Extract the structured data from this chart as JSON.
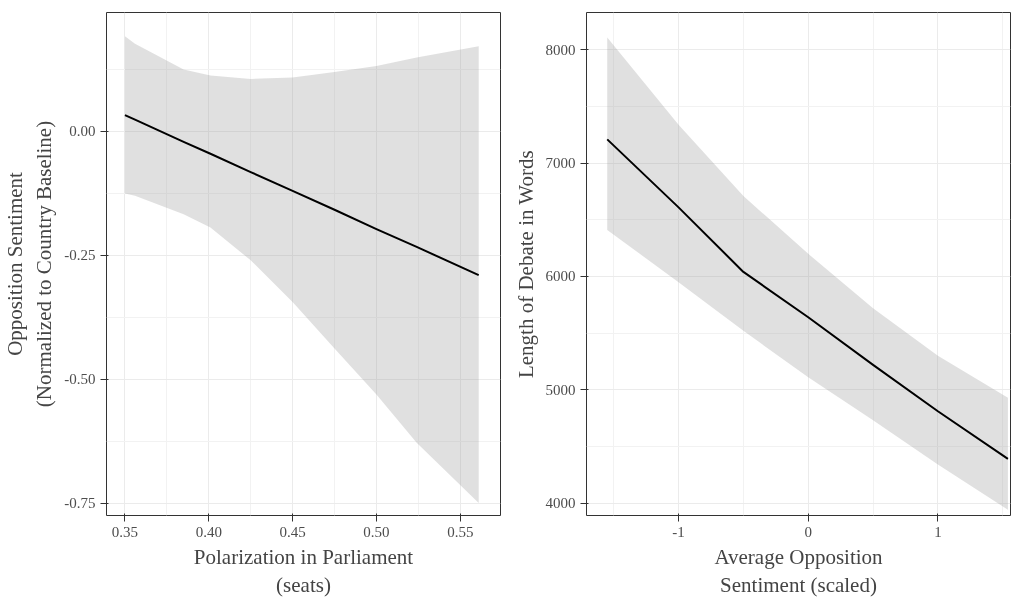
{
  "chart_data": [
    {
      "type": "line",
      "xlabel": "Polarization in Parliament\n(seats)",
      "ylabel": "Opposition Sentiment\n(Normalized to Country Baseline)",
      "xlim": [
        0.339,
        0.574
      ],
      "ylim": [
        -0.775,
        0.24
      ],
      "xticks": [
        0.35,
        {
          "value": 0.4,
          "label": "0.40"
        },
        0.45,
        {
          "value": 0.5,
          "label": "0.50"
        },
        0.55
      ],
      "yticks": [
        {
          "value": 0,
          "label": "0.00"
        },
        -0.25,
        {
          "value": -0.5,
          "label": "-0.50"
        },
        -0.75
      ],
      "grid": true,
      "series": [
        {
          "color": "#000000",
          "x": [
            0.35,
            0.356,
            0.385,
            0.401,
            0.425,
            0.45,
            0.475,
            0.5,
            0.524,
            0.561
          ],
          "values": [
            0.033,
            0.024,
            -0.021,
            -0.045,
            -0.082,
            -0.12,
            -0.158,
            -0.197,
            -0.233,
            -0.29
          ],
          "upper": [
            0.192,
            0.177,
            0.125,
            0.113,
            0.106,
            0.109,
            0.12,
            0.132,
            0.149,
            0.172
          ],
          "lower": [
            -0.125,
            -0.13,
            -0.167,
            -0.194,
            -0.26,
            -0.344,
            -0.438,
            -0.531,
            -0.628,
            -0.75
          ]
        }
      ]
    },
    {
      "type": "line",
      "xlabel": "Average Opposition\nSentiment (scaled)",
      "ylabel": "Length of Debate in Words",
      "xlim": [
        -1.71,
        1.56
      ],
      "ylim": [
        3890,
        8330
      ],
      "xticks": [
        -1,
        0,
        1
      ],
      "yticks": [
        4000,
        5000,
        6000,
        7000,
        8000
      ],
      "grid": true,
      "series": [
        {
          "color": "#000000",
          "x": [
            -1.55,
            -1.0,
            -0.5,
            0,
            0.5,
            1.0,
            1.54
          ],
          "values": [
            7210,
            6610,
            6040,
            5640,
            5220,
            4810,
            4390
          ],
          "upper": [
            8110,
            7340,
            6710,
            6200,
            5720,
            5300,
            4930
          ],
          "lower": [
            6410,
            5950,
            5520,
            5110,
            4730,
            4340,
            3940
          ]
        }
      ]
    }
  ]
}
